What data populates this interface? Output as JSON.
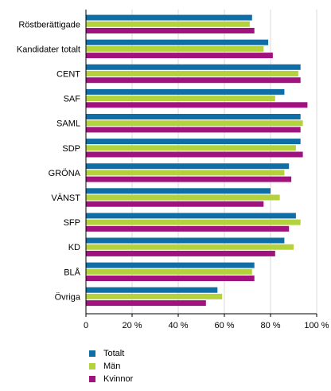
{
  "chart_data": {
    "type": "bar",
    "orientation": "horizontal",
    "categories": [
      "Röstberättigade",
      "Kandidater totalt",
      "CENT",
      "SAF",
      "SAML",
      "SDP",
      "GRÖNA",
      "VÄNST",
      "SFP",
      "KD",
      "BLÅ",
      "Övriga"
    ],
    "series": [
      {
        "name": "Totalt",
        "color": "#0f6ea5",
        "values": [
          72,
          79,
          93,
          86,
          93,
          93,
          88,
          80,
          91,
          86,
          73,
          57
        ]
      },
      {
        "name": "Män",
        "color": "#b4d23c",
        "values": [
          71,
          77,
          92,
          82,
          94,
          91,
          86,
          84,
          93,
          90,
          72,
          59
        ]
      },
      {
        "name": "Kvinnor",
        "color": "#a0127d",
        "values": [
          73,
          81,
          93,
          96,
          93,
          94,
          89,
          77,
          88,
          82,
          73,
          52
        ]
      }
    ],
    "x_ticks": [
      "0",
      "20 %",
      "40 %",
      "60 %",
      "80 %",
      "100 %"
    ],
    "xlim": [
      0,
      100
    ],
    "grid": true,
    "legend_position": "bottom-left"
  }
}
